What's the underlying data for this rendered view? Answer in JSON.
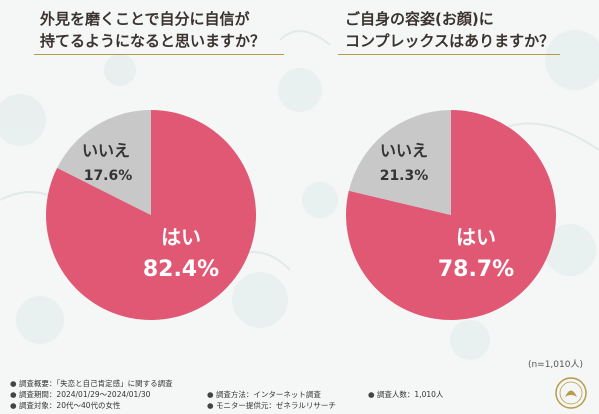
{
  "charts": [
    {
      "title_line1": "外見を磨くことで自分に自信が",
      "title_line2": "持てるようになると思いますか？",
      "yes_label": "はい",
      "yes_value": "82.4%",
      "no_label": "いいえ",
      "no_value": "17.6%"
    },
    {
      "title_line1": "ご自身の容姿(お顔)に",
      "title_line2": "コンプレックスはありますか？",
      "yes_label": "はい",
      "yes_value": "78.7%",
      "no_label": "いいえ",
      "no_value": "21.3%"
    }
  ],
  "chart_data": [
    {
      "type": "pie",
      "title": "外見を磨くことで自分に自信が持てるようになると思いますか？",
      "categories": [
        "はい",
        "いいえ"
      ],
      "values": [
        82.4,
        17.6
      ],
      "colors": [
        "#e05874",
        "#c8c8c8"
      ]
    },
    {
      "type": "pie",
      "title": "ご自身の容姿(お顔)にコンプレックスはありますか？",
      "categories": [
        "はい",
        "いいえ"
      ],
      "values": [
        78.7,
        21.3
      ],
      "colors": [
        "#e05874",
        "#c8c8c8"
      ]
    }
  ],
  "sample_note": "(n=1,010人)",
  "footer": {
    "summary": "調査概要：「失恋と自己肯定感」に関する調査",
    "period": "調査期間：2024/01/29～2024/01/30",
    "target": "調査対象：20代～40代の女性",
    "method": "調査方法：インターネット調査",
    "provider": "モニター提供元：ゼネラルリサーチ",
    "count": "調査人数：1,010人"
  },
  "colors": {
    "yes": "#e05874",
    "no": "#c8c8c8",
    "accent_line": "#b89b4a"
  }
}
